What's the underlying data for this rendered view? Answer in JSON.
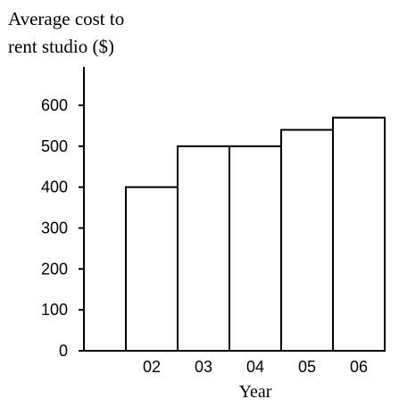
{
  "chart_data": {
    "type": "bar",
    "ylabel": "Average cost to rent studio ($)",
    "ylabel_lines": [
      "Average cost to",
      "rent studio ($)"
    ],
    "xlabel": "Year",
    "categories": [
      "02",
      "03",
      "04",
      "05",
      "06"
    ],
    "values": [
      400,
      500,
      500,
      540,
      570
    ],
    "yticks": [
      0,
      100,
      200,
      300,
      400,
      500,
      600
    ],
    "ylim": [
      0,
      650
    ],
    "grid": false,
    "legend": "none"
  }
}
